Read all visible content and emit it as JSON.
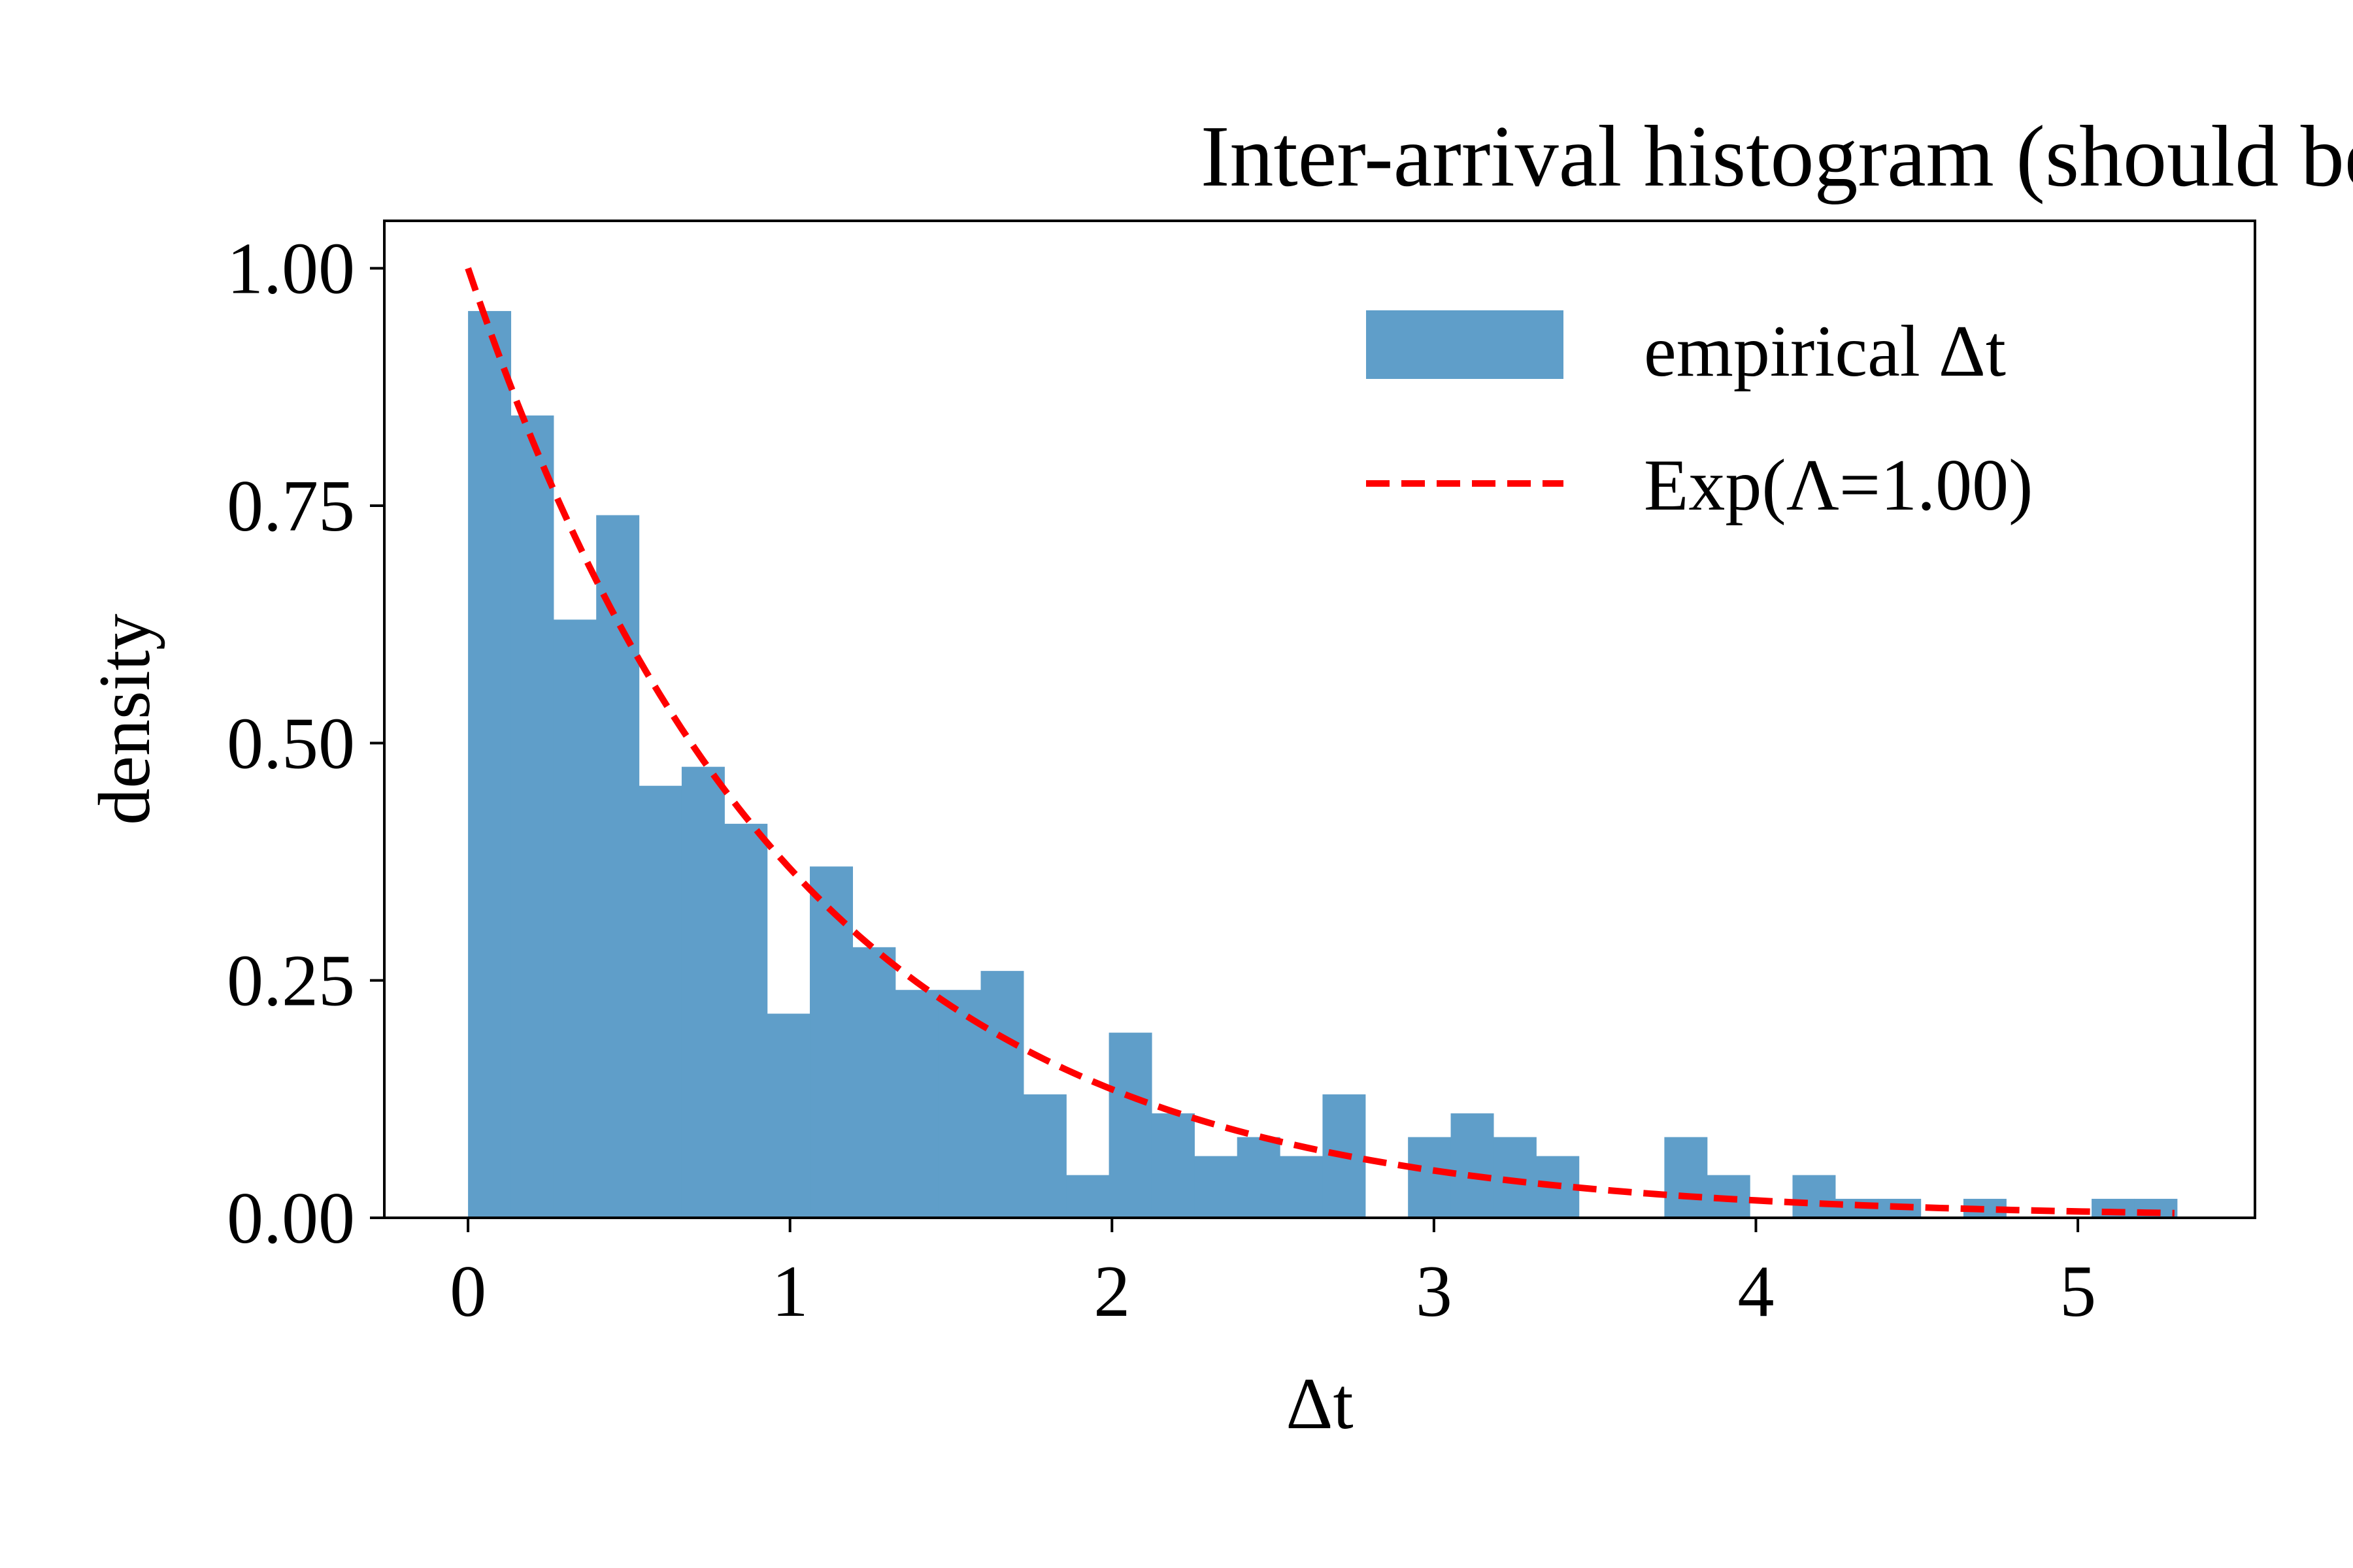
{
  "chart_data": {
    "type": "bar",
    "title": "Inter-arrival histogram (should be ~Exp(Λ))",
    "xlabel": "Δt",
    "ylabel": "density",
    "xlim": [
      -0.26,
      5.55
    ],
    "ylim": [
      0,
      1.05
    ],
    "xticks": [
      0,
      1,
      2,
      3,
      4,
      5
    ],
    "xtick_labels": [
      "0",
      "1",
      "2",
      "3",
      "4",
      "5"
    ],
    "yticks": [
      0,
      0.25,
      0.5,
      0.75,
      1.0
    ],
    "ytick_labels": [
      "0.00",
      "0.25",
      "0.50",
      "0.75",
      "1.00"
    ],
    "grid": false,
    "legend_placement": "top-right",
    "bin_start": 0.0,
    "bin_width": 0.1327,
    "series": [
      {
        "name": "empirical Δt",
        "kind": "histogram",
        "color": "#5f9ec9",
        "values": [
          0.955,
          0.845,
          0.63,
          0.74,
          0.455,
          0.475,
          0.415,
          0.215,
          0.37,
          0.285,
          0.24,
          0.24,
          0.26,
          0.13,
          0.045,
          0.195,
          0.11,
          0.065,
          0.085,
          0.065,
          0.13,
          0.0,
          0.085,
          0.11,
          0.085,
          0.065,
          0.0,
          0.0,
          0.085,
          0.045,
          0.0,
          0.045,
          0.02,
          0.02,
          0.0,
          0.02,
          0.0,
          0.0,
          0.02,
          0.02
        ]
      },
      {
        "name": "Exp(Λ=1.00)",
        "kind": "curve",
        "color": "#ff0000",
        "line_style": "dashed",
        "rate": 1.0,
        "x_range": [
          0.0,
          5.3
        ]
      }
    ]
  }
}
